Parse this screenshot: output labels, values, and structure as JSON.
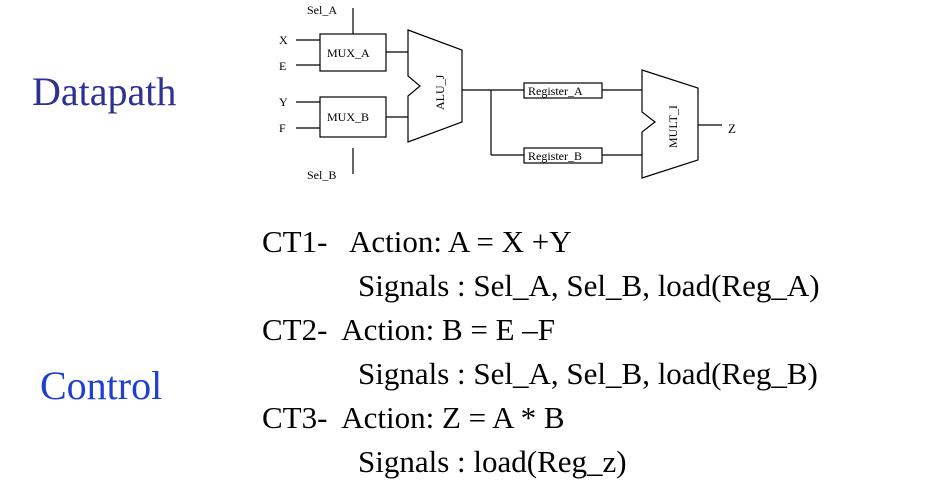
{
  "colors": {
    "datapath_label": "#2e3192",
    "control_label": "#1f3fd1",
    "diagram_stroke": "#000000"
  },
  "labels": {
    "datapath": "Datapath",
    "control": "Control"
  },
  "diagram": {
    "sel_a": "Sel_A",
    "sel_b": "Sel_B",
    "in_x": "X",
    "in_e": "E",
    "in_y": "Y",
    "in_f": "F",
    "mux_a": "MUX_A",
    "mux_b": "MUX_B",
    "alu": "ALU_J",
    "register_a": "Register_A",
    "register_b": "Register_B",
    "mult": "MULT_I",
    "out_z": "Z"
  },
  "control_steps": {
    "ct1": {
      "action": "CT1-   Action: A = X +Y",
      "signals": "Signals : Sel_A, Sel_B, load(Reg_A)"
    },
    "ct2": {
      "action": "CT2-  Action: B = E –F",
      "signals": "Signals : Sel_A, Sel_B, load(Reg_B)"
    },
    "ct3": {
      "action": "CT3-  Action: Z = A * B",
      "signals": "Signals : load(Reg_z)"
    }
  }
}
